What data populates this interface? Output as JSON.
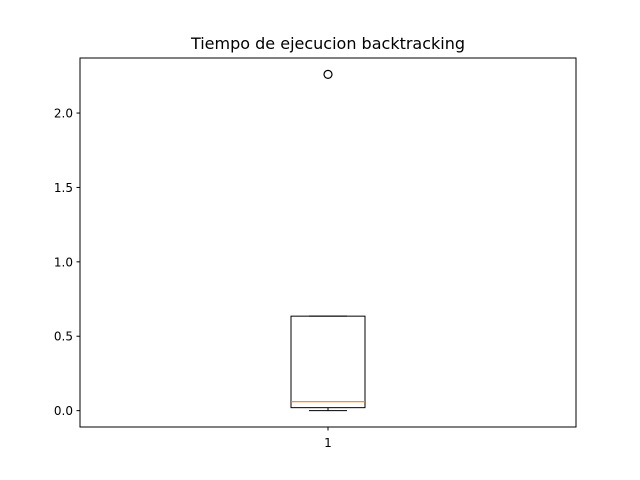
{
  "chart_data": {
    "type": "box",
    "title": "Tiempo de ejecucion backtracking",
    "xlabel": "",
    "ylabel": "",
    "categories": [
      "1"
    ],
    "ylim": [
      -0.11,
      2.37
    ],
    "yticks": [
      0.0,
      0.5,
      1.0,
      1.5,
      2.0
    ],
    "ytick_labels": [
      "0.0",
      "0.5",
      "1.0",
      "1.5",
      "2.0"
    ],
    "grid": false,
    "boxes": [
      {
        "category": "1",
        "whisker_low": 0.0,
        "q1": 0.02,
        "median": 0.06,
        "q3": 0.635,
        "whisker_high": 0.635,
        "outliers": [
          2.26
        ]
      }
    ],
    "colors": {
      "box": "#000000",
      "median": "#ff7f0e",
      "outlier": "#000000"
    }
  }
}
